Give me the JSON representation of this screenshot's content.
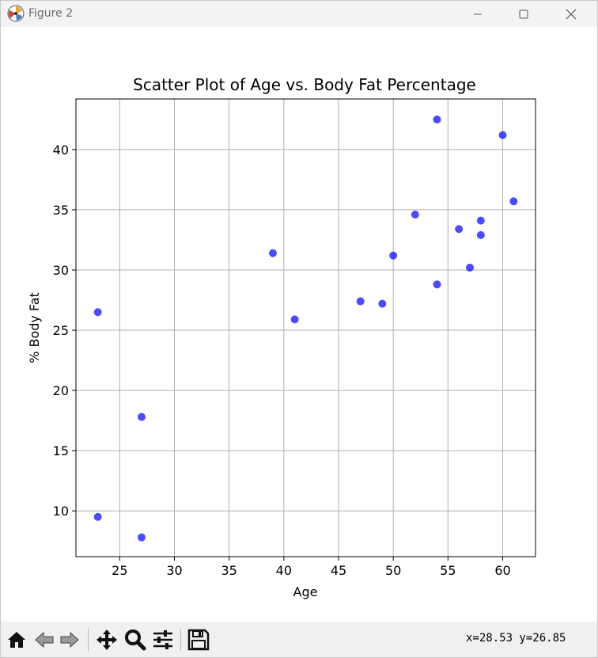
{
  "window": {
    "title": "Figure 2",
    "icon": "matplotlib-icon",
    "controls": [
      "minimize-icon",
      "maximize-icon",
      "close-icon"
    ]
  },
  "toolbar": {
    "tools": [
      "home-icon",
      "back-arrow-icon",
      "forward-arrow-icon",
      "pan-icon",
      "zoom-icon",
      "configure-subplots-icon",
      "save-icon"
    ],
    "coords": "x=28.53 y=26.85"
  },
  "colors": {
    "marker": "#0000ff",
    "grid": "#b0b0b0",
    "axes": "#000000"
  },
  "chart_data": {
    "type": "scatter",
    "title": "Scatter Plot of Age vs. Body Fat Percentage",
    "xlabel": "Age",
    "ylabel": "% Body Fat",
    "xlim": [
      21,
      63
    ],
    "ylim": [
      6.2,
      44.2
    ],
    "xticks": [
      25,
      30,
      35,
      40,
      45,
      50,
      55,
      60
    ],
    "yticks": [
      10,
      15,
      20,
      25,
      30,
      35,
      40
    ],
    "grid": true,
    "marker_alpha": 0.7,
    "points": [
      {
        "x": 23,
        "y": 9.5
      },
      {
        "x": 23,
        "y": 26.5
      },
      {
        "x": 27,
        "y": 7.8
      },
      {
        "x": 27,
        "y": 17.8
      },
      {
        "x": 39,
        "y": 31.4
      },
      {
        "x": 41,
        "y": 25.9
      },
      {
        "x": 47,
        "y": 27.4
      },
      {
        "x": 49,
        "y": 27.2
      },
      {
        "x": 50,
        "y": 31.2
      },
      {
        "x": 52,
        "y": 34.6
      },
      {
        "x": 54,
        "y": 42.5
      },
      {
        "x": 54,
        "y": 28.8
      },
      {
        "x": 56,
        "y": 33.4
      },
      {
        "x": 57,
        "y": 30.2
      },
      {
        "x": 58,
        "y": 34.1
      },
      {
        "x": 58,
        "y": 32.9
      },
      {
        "x": 60,
        "y": 41.2
      },
      {
        "x": 61,
        "y": 35.7
      }
    ]
  }
}
